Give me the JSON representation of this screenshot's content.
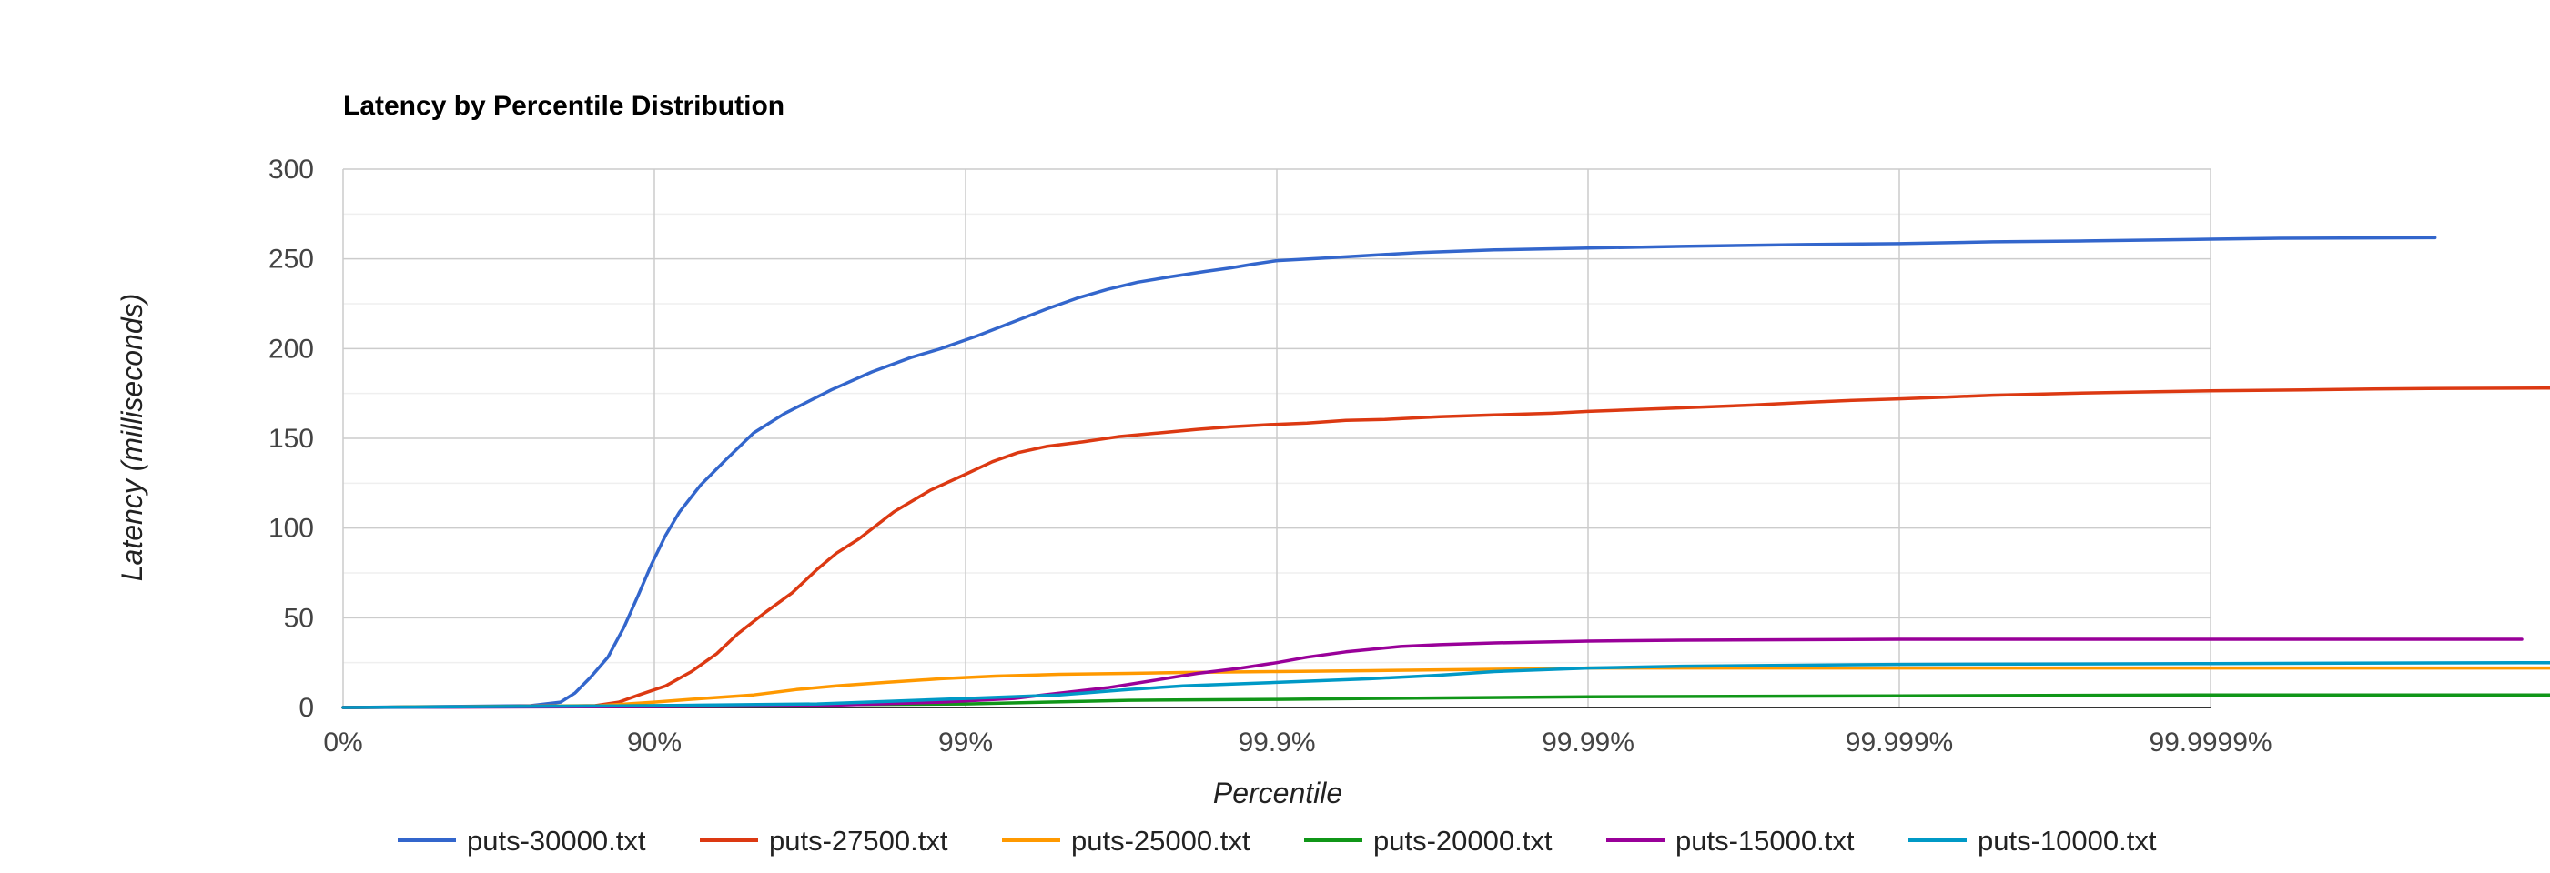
{
  "chart_data": {
    "type": "line",
    "title": "Latency by Percentile Distribution",
    "xlabel": "Percentile",
    "ylabel": "Latency (milliseconds)",
    "x_scale": "log of 1/(1 - percentile); major ticks at each additional nine",
    "xlim": [
      "0%",
      "99.9999%"
    ],
    "ylim": [
      0,
      300
    ],
    "x_ticks": [
      "0%",
      "90%",
      "99%",
      "99.9%",
      "99.99%",
      "99.999%",
      "99.9999%"
    ],
    "y_ticks": [
      0,
      50,
      100,
      150,
      200,
      250,
      300
    ],
    "grid": true,
    "minor_y_grid": true,
    "legend_position": "bottom",
    "x_units": "percentile (%)",
    "series": [
      {
        "name": "puts-30000.txt",
        "color": "#3366cc",
        "points": [
          [
            0,
            0
          ],
          [
            50,
            0.5
          ],
          [
            75,
            1
          ],
          [
            80,
            3
          ],
          [
            82,
            8
          ],
          [
            84,
            17
          ],
          [
            85.9,
            28
          ],
          [
            87.5,
            45
          ],
          [
            88.7,
            62
          ],
          [
            89.8,
            80
          ],
          [
            90.8,
            96
          ],
          [
            91.7,
            109
          ],
          [
            92.9,
            124
          ],
          [
            94.1,
            138
          ],
          [
            95.2,
            153
          ],
          [
            96.2,
            164
          ],
          [
            97.3,
            177
          ],
          [
            98.0,
            187
          ],
          [
            98.5,
            195
          ],
          [
            98.8,
            200
          ],
          [
            99.08,
            207
          ],
          [
            99.3,
            215
          ],
          [
            99.45,
            222
          ],
          [
            99.56,
            228
          ],
          [
            99.65,
            233
          ],
          [
            99.72,
            237
          ],
          [
            99.78,
            240
          ],
          [
            99.83,
            243
          ],
          [
            99.86,
            245
          ],
          [
            99.88,
            247
          ],
          [
            99.9,
            249
          ],
          [
            99.93,
            250.5
          ],
          [
            99.95,
            252
          ],
          [
            99.965,
            253.5
          ],
          [
            99.98,
            255
          ],
          [
            99.99,
            256
          ],
          [
            99.995,
            257
          ],
          [
            99.998,
            258
          ],
          [
            99.999,
            258.5
          ],
          [
            99.9995,
            259.5
          ],
          [
            99.99975,
            260
          ],
          [
            99.99985,
            260.5
          ],
          [
            99.9999,
            261
          ],
          [
            99.99994,
            261.5
          ],
          [
            99.99997,
            261.7
          ],
          [
            99.999981,
            261.8
          ]
        ]
      },
      {
        "name": "puts-27500.txt",
        "color": "#dc3912",
        "points": [
          [
            0,
            0
          ],
          [
            75,
            0.5
          ],
          [
            84.5,
            1
          ],
          [
            87.0,
            3
          ],
          [
            88.8,
            7
          ],
          [
            90.8,
            12
          ],
          [
            92.4,
            20
          ],
          [
            93.7,
            30
          ],
          [
            94.6,
            41
          ],
          [
            95.6,
            53
          ],
          [
            96.4,
            64
          ],
          [
            97.0,
            77
          ],
          [
            97.4,
            86
          ],
          [
            97.8,
            94
          ],
          [
            98.3,
            109
          ],
          [
            98.7,
            121
          ],
          [
            99.0,
            130
          ],
          [
            99.18,
            137
          ],
          [
            99.32,
            142
          ],
          [
            99.45,
            145.5
          ],
          [
            99.58,
            148
          ],
          [
            99.68,
            151
          ],
          [
            99.76,
            153
          ],
          [
            99.82,
            155
          ],
          [
            99.86,
            156.5
          ],
          [
            99.89,
            157.5
          ],
          [
            99.92,
            158.5
          ],
          [
            99.94,
            160
          ],
          [
            99.955,
            160.5
          ],
          [
            99.97,
            162
          ],
          [
            99.98,
            163
          ],
          [
            99.987,
            164
          ],
          [
            99.99,
            165
          ],
          [
            99.993,
            166
          ],
          [
            99.995,
            167
          ],
          [
            99.997,
            168.5
          ],
          [
            99.998,
            170
          ],
          [
            99.9985,
            171
          ],
          [
            99.999,
            172
          ],
          [
            99.9993,
            173
          ],
          [
            99.9995,
            174
          ],
          [
            99.9997,
            175
          ],
          [
            99.99985,
            176
          ],
          [
            99.9999,
            176.5
          ],
          [
            99.99995,
            177
          ],
          [
            99.99997,
            177.5
          ],
          [
            99.999983,
            177.8
          ],
          [
            99.999993,
            178
          ]
        ]
      },
      {
        "name": "puts-25000.txt",
        "color": "#ff9900",
        "points": [
          [
            0,
            0
          ],
          [
            85,
            1
          ],
          [
            90,
            3
          ],
          [
            93,
            5
          ],
          [
            95.2,
            7
          ],
          [
            96.5,
            10
          ],
          [
            97.4,
            12
          ],
          [
            98.2,
            14
          ],
          [
            98.8,
            16
          ],
          [
            99.2,
            17.5
          ],
          [
            99.5,
            18.5
          ],
          [
            99.7,
            19
          ],
          [
            99.8,
            19.5
          ],
          [
            99.9,
            20
          ],
          [
            99.95,
            20.5
          ],
          [
            99.97,
            21
          ],
          [
            99.985,
            21.5
          ],
          [
            99.99,
            22
          ],
          [
            99.999,
            22
          ],
          [
            99.9999,
            22
          ],
          [
            99.99999,
            22
          ],
          [
            99.999996,
            22
          ]
        ]
      },
      {
        "name": "puts-20000.txt",
        "color": "#109618",
        "points": [
          [
            0,
            0
          ],
          [
            90,
            1
          ],
          [
            99,
            2
          ],
          [
            99.7,
            4
          ],
          [
            99.9,
            4.5
          ],
          [
            99.95,
            5
          ],
          [
            99.99,
            6
          ],
          [
            99.999,
            6.5
          ],
          [
            99.9999,
            7
          ],
          [
            99.99999,
            7
          ],
          [
            99.999999,
            7
          ]
        ]
      },
      {
        "name": "puts-15000.txt",
        "color": "#990099",
        "points": [
          [
            0,
            0
          ],
          [
            90,
            0.5
          ],
          [
            97,
            1
          ],
          [
            98.8,
            3
          ],
          [
            99.3,
            5
          ],
          [
            99.5,
            8
          ],
          [
            99.65,
            11
          ],
          [
            99.75,
            15
          ],
          [
            99.82,
            19
          ],
          [
            99.87,
            22
          ],
          [
            99.9,
            25
          ],
          [
            99.92,
            28
          ],
          [
            99.94,
            31
          ],
          [
            99.96,
            34
          ],
          [
            99.97,
            35
          ],
          [
            99.98,
            36
          ],
          [
            99.99,
            37
          ],
          [
            99.995,
            37.5
          ],
          [
            99.999,
            38
          ],
          [
            99.9999,
            38
          ],
          [
            99.99999,
            38
          ],
          [
            99.999987,
            38
          ]
        ]
      },
      {
        "name": "puts-10000.txt",
        "color": "#0099c6",
        "points": [
          [
            0,
            0
          ],
          [
            90,
            1
          ],
          [
            97,
            2
          ],
          [
            99,
            5
          ],
          [
            99.5,
            7
          ],
          [
            99.7,
            10
          ],
          [
            99.8,
            12
          ],
          [
            99.9,
            14
          ],
          [
            99.95,
            16
          ],
          [
            99.97,
            18
          ],
          [
            99.98,
            20
          ],
          [
            99.99,
            22
          ],
          [
            99.995,
            23
          ],
          [
            99.999,
            24
          ],
          [
            99.9999,
            24.5
          ],
          [
            99.99999,
            25
          ],
          [
            99.999997,
            25
          ]
        ]
      }
    ]
  }
}
